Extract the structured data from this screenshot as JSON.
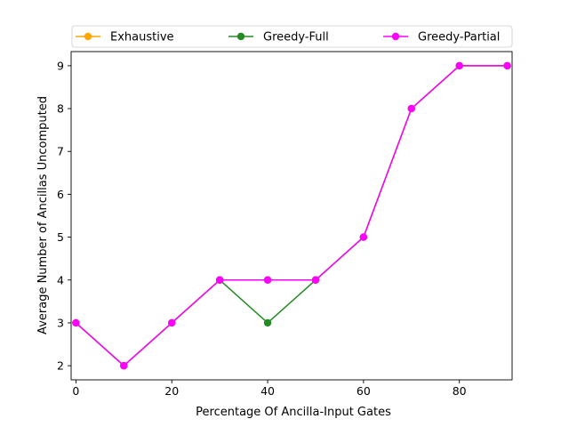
{
  "chart_data": {
    "type": "line",
    "title": "",
    "xlabel": "Percentage Of Ancilla-Input Gates",
    "ylabel": "Average Number of Ancillas Uncomputed",
    "x": [
      0,
      10,
      20,
      30,
      40,
      50,
      60,
      70,
      80,
      90
    ],
    "xlim": [
      -1,
      91
    ],
    "ylim": [
      1.67,
      9.33
    ],
    "xticks": [
      0,
      20,
      40,
      60,
      80
    ],
    "yticks": [
      2,
      3,
      4,
      5,
      6,
      7,
      8,
      9
    ],
    "grid": false,
    "legend": "top, outside, 3 columns",
    "series": [
      {
        "name": "Exhaustive",
        "color": "#ffa500",
        "values": [
          3,
          2,
          3,
          4,
          4,
          4,
          5,
          8,
          9,
          9
        ]
      },
      {
        "name": "Greedy-Full",
        "color": "#228b22",
        "values": [
          3,
          2,
          3,
          4,
          3,
          4,
          5,
          8,
          9,
          9
        ]
      },
      {
        "name": "Greedy-Partial",
        "color": "#ff00ff",
        "values": [
          3,
          2,
          3,
          4,
          4,
          4,
          5,
          8,
          9,
          9
        ]
      }
    ]
  }
}
